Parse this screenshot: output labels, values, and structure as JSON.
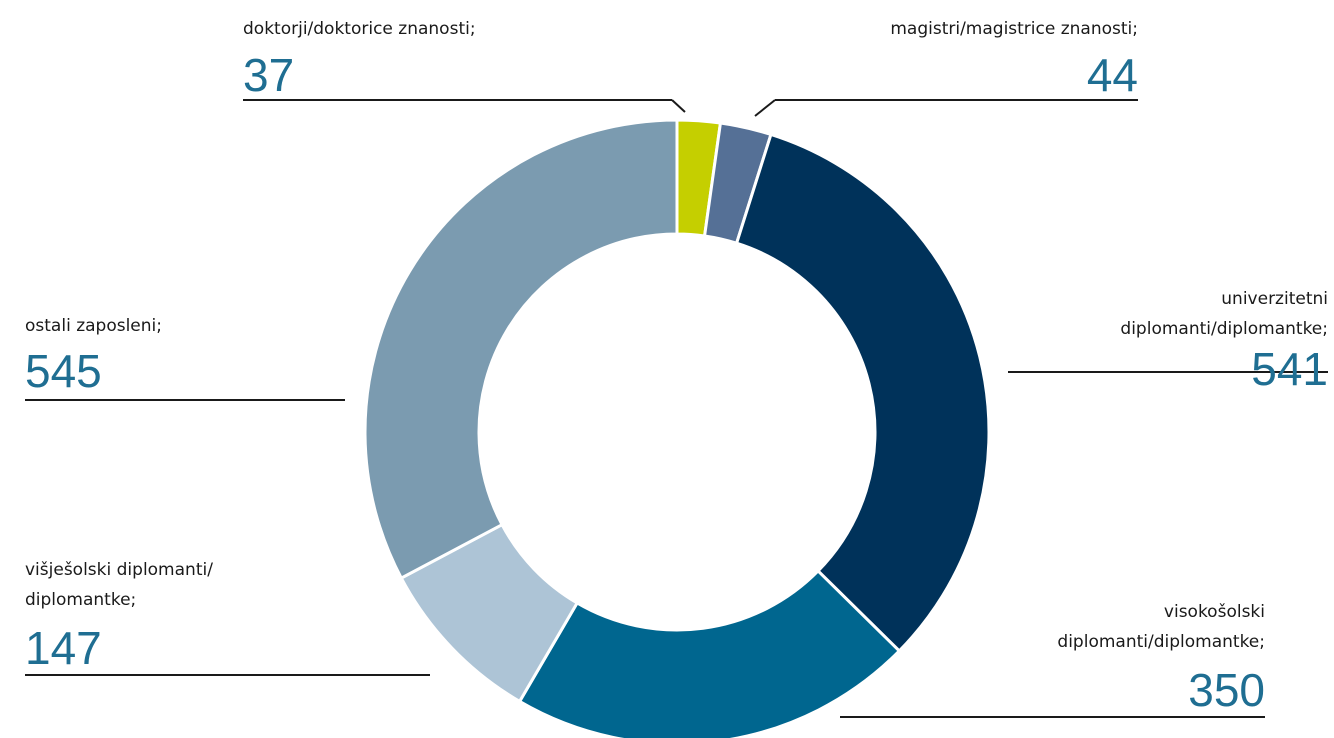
{
  "chart_data": {
    "type": "donut",
    "categories": [
      [
        "doktorji/doktorice znanosti;"
      ],
      [
        "magistri/magistrice znanosti;"
      ],
      [
        "univerzitetni",
        "diplomanti/diplomantke;"
      ],
      [
        "visokošolski",
        "diplomanti/diplomantke;"
      ],
      [
        "višješolski diplomanti/",
        "diplomantke;"
      ],
      [
        "ostali zaposleni;"
      ]
    ],
    "values": [
      37,
      44,
      541,
      350,
      147,
      545
    ],
    "colors": [
      "#c5cf00",
      "#557096",
      "#00325a",
      "#00668f",
      "#adc4d6",
      "#7b9bb0"
    ]
  }
}
